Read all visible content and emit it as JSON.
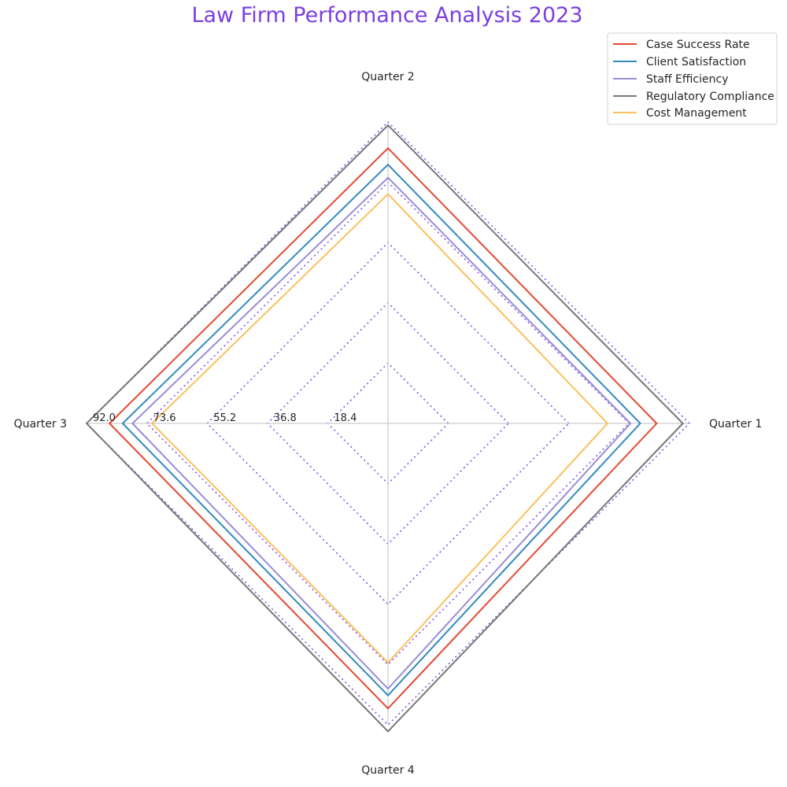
{
  "chart_data": {
    "type": "radar",
    "title": "Law Firm Performance Analysis 2023",
    "title_color": "#7a3fe0",
    "axes": [
      "Quarter 1",
      "Quarter 2",
      "Quarter 3",
      "Quarter 4"
    ],
    "rmax": 92.0,
    "radial_ticks": [
      18.4,
      36.8,
      55.2,
      73.6,
      92.0
    ],
    "radial_tick_labels": [
      "18.4",
      "36.8",
      "55.2",
      "73.6",
      "92.0"
    ],
    "grid_color": "#8a4fef",
    "grid_style": "dotted",
    "legend_position": "top-right",
    "series": [
      {
        "name": "Case Success Rate",
        "color": "#e24a33",
        "values": [
          82,
          84,
          85,
          87
        ]
      },
      {
        "name": "Client Satisfaction",
        "color": "#348abd",
        "values": [
          77,
          79,
          81,
          83
        ]
      },
      {
        "name": "Staff Efficiency",
        "color": "#988ed5",
        "values": [
          74,
          75,
          78,
          81
        ]
      },
      {
        "name": "Regulatory Compliance",
        "color": "#777777",
        "values": [
          90,
          91,
          92,
          94
        ]
      },
      {
        "name": "Cost Management",
        "color": "#fbc15e",
        "values": [
          67,
          70,
          72,
          73
        ]
      }
    ]
  }
}
